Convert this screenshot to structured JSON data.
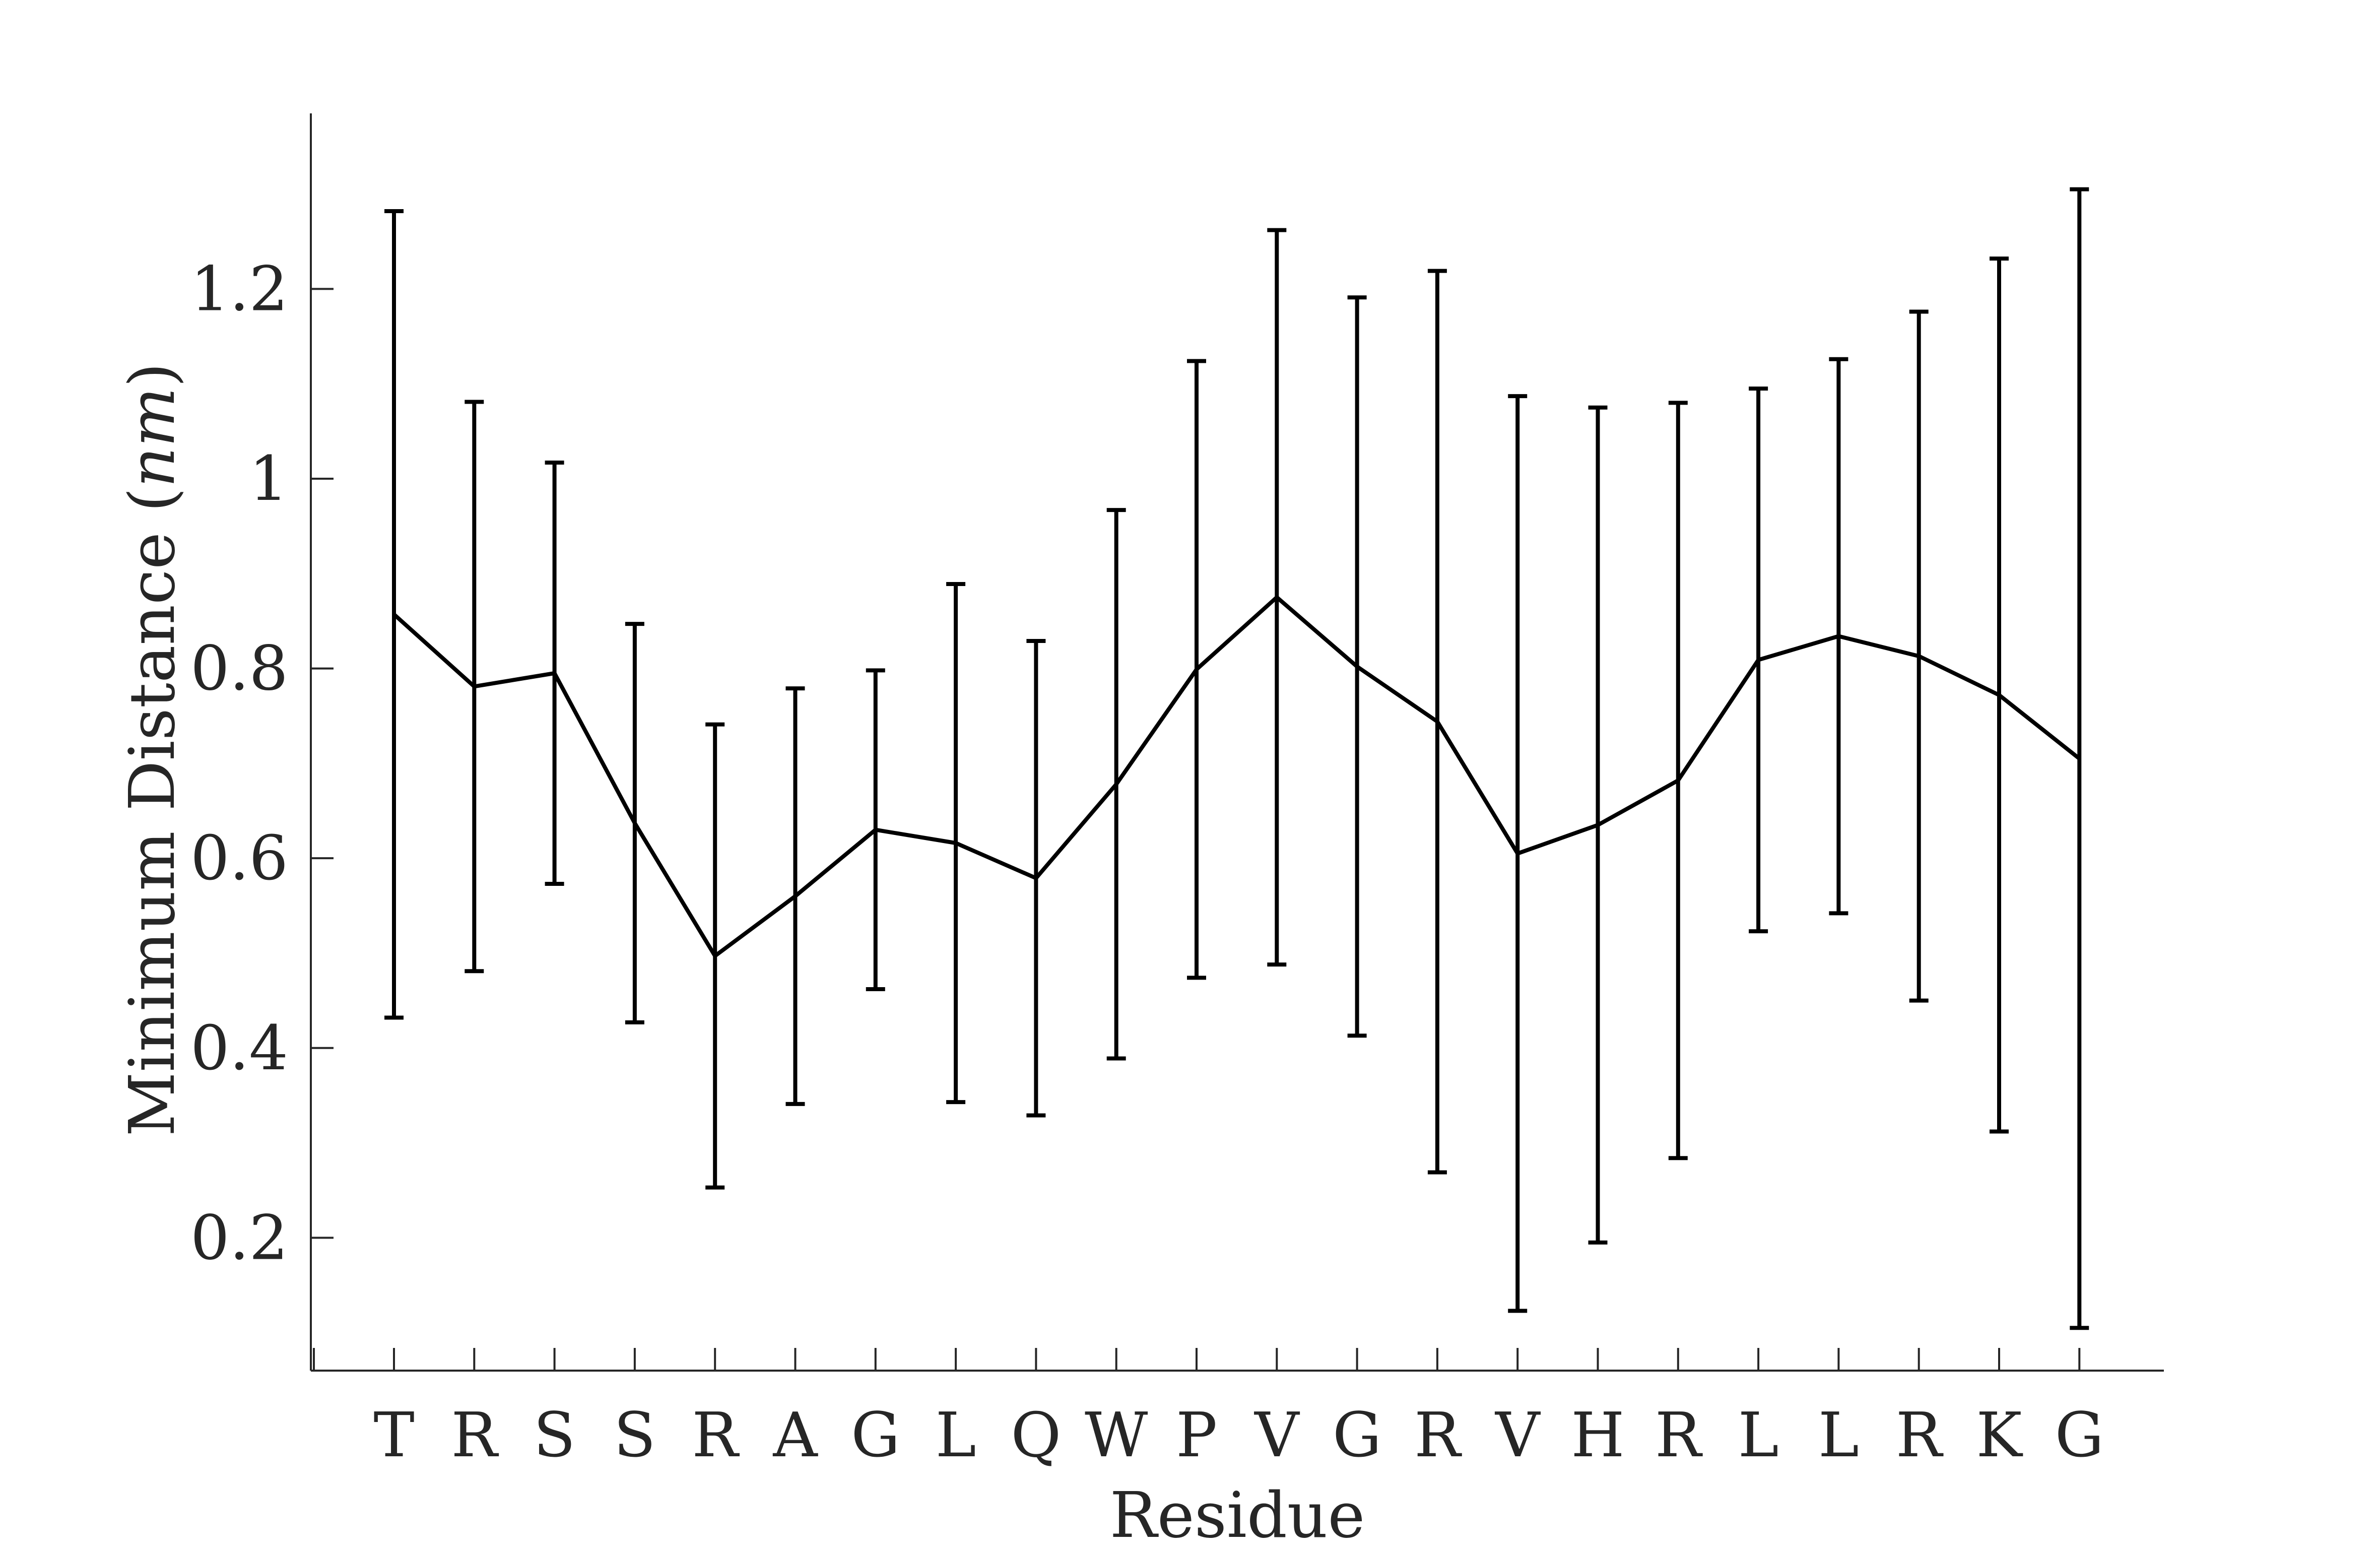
{
  "chart_data": {
    "type": "line",
    "xlabel": "Residue",
    "ylabel": "Minimum Distance (",
    "ylabel_unit": "nm",
    "ylabel_close": ")",
    "categories": [
      "T",
      "R",
      "S",
      "S",
      "R",
      "A",
      "G",
      "L",
      "Q",
      "W",
      "P",
      "V",
      "G",
      "R",
      "V",
      "H",
      "R",
      "L",
      "L",
      "R",
      "K",
      "G"
    ],
    "series": [
      {
        "values": [
          0.857,
          0.781,
          0.795,
          0.637,
          0.497,
          0.56,
          0.63,
          0.616,
          0.579,
          0.678,
          0.799,
          0.875,
          0.802,
          0.744,
          0.605,
          0.635,
          0.682,
          0.809,
          0.834,
          0.813,
          0.772,
          0.705
        ],
        "error": [
          0.425,
          0.3,
          0.222,
          0.21,
          0.244,
          0.219,
          0.168,
          0.273,
          0.25,
          0.289,
          0.325,
          0.387,
          0.389,
          0.475,
          0.482,
          0.44,
          0.398,
          0.286,
          0.292,
          0.363,
          0.46,
          0.6
        ],
        "color": "#000000"
      }
    ],
    "ylim": [
      0.06,
      1.385
    ],
    "yticks": [
      0.2,
      0.4,
      0.6,
      0.8,
      1.0,
      1.2
    ],
    "ytick_labels": [
      "0.2",
      "0.4",
      "0.6",
      "0.8",
      "1",
      "1.2"
    ],
    "grid": false,
    "legend": "none"
  }
}
